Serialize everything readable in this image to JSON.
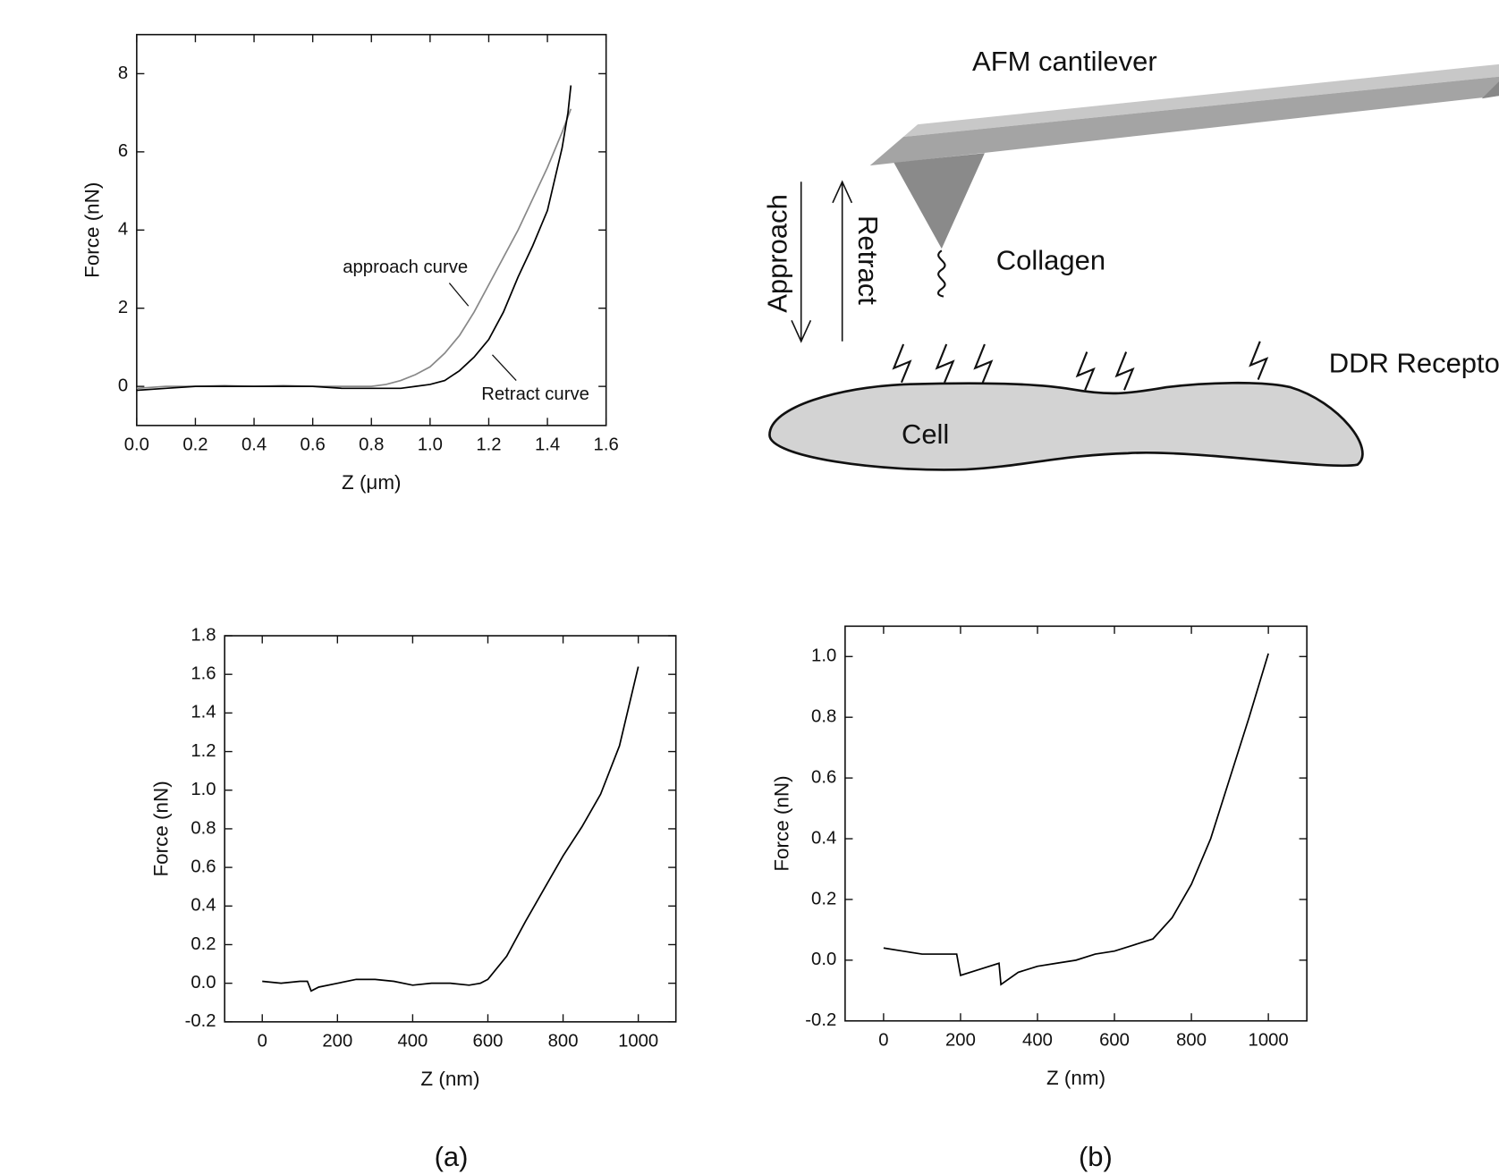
{
  "chart_data": [
    {
      "type": "line",
      "x_label": "Z (μm)",
      "y_label": "Force (nN)",
      "xlim": [
        0,
        1.6
      ],
      "ylim": [
        -1,
        9
      ],
      "xticks": [
        {
          "value": 0,
          "label": "0.0"
        },
        0.2,
        0.4,
        0.6,
        0.8,
        {
          "value": 1,
          "label": "1.0"
        },
        1.2,
        1.4,
        1.6
      ],
      "yticks": [
        0,
        2,
        4,
        6,
        8
      ],
      "x": [
        0,
        0.1,
        0.2,
        0.3,
        0.4,
        0.5,
        0.6,
        0.7,
        0.8,
        0.85,
        0.9,
        0.95,
        1.0,
        1.05,
        1.1,
        1.15,
        1.2,
        1.25,
        1.3,
        1.35,
        1.4,
        1.45,
        1.47,
        1.48
      ],
      "series": [
        {
          "color": "#888888",
          "values": [
            -0.05,
            0.0,
            0.0,
            0.02,
            0.0,
            0.02,
            0.0,
            0.0,
            0.0,
            0.05,
            0.15,
            0.3,
            0.5,
            0.85,
            1.3,
            1.9,
            2.6,
            3.3,
            4.0,
            4.8,
            5.6,
            6.5,
            6.9,
            7.1
          ]
        },
        {
          "color": "#000000",
          "values": [
            -0.1,
            -0.05,
            0.0,
            0.0,
            0.0,
            0.0,
            0.0,
            -0.05,
            -0.05,
            -0.05,
            -0.05,
            0.0,
            0.05,
            0.15,
            0.4,
            0.75,
            1.2,
            1.9,
            2.8,
            3.6,
            4.5,
            6.1,
            7.0,
            7.7
          ]
        }
      ],
      "annotations": [
        "approach curve",
        "Retract curve"
      ]
    },
    {
      "type": "line",
      "x_label": "Z (nm)",
      "y_label": "Force (nN)",
      "xlim": [
        -100,
        1100
      ],
      "ylim": [
        -0.2,
        1.8
      ],
      "xticks": [
        0,
        200,
        400,
        600,
        800,
        1000
      ],
      "yticks": [
        -0.2,
        {
          "value": 0,
          "label": "0.0"
        },
        0.2,
        0.4,
        0.6,
        0.8,
        {
          "value": 1,
          "label": "1.0"
        },
        1.2,
        1.4,
        1.6,
        1.8
      ],
      "x": [
        0,
        50,
        100,
        120,
        130,
        150,
        200,
        250,
        300,
        350,
        400,
        450,
        500,
        550,
        580,
        600,
        650,
        700,
        750,
        800,
        850,
        900,
        950,
        1000
      ],
      "series": [
        {
          "color": "#000000",
          "values": [
            0.01,
            0.0,
            0.01,
            0.01,
            -0.04,
            -0.02,
            0.0,
            0.02,
            0.02,
            0.01,
            -0.01,
            0.0,
            0.0,
            -0.01,
            0.0,
            0.02,
            0.14,
            0.32,
            0.49,
            0.66,
            0.81,
            0.98,
            1.23,
            1.64
          ]
        }
      ]
    },
    {
      "type": "line",
      "x_label": "Z (nm)",
      "y_label": "Force (nN)",
      "xlim": [
        -100,
        1100
      ],
      "ylim": [
        -0.2,
        1.1
      ],
      "xticks": [
        0,
        200,
        400,
        600,
        800,
        1000
      ],
      "yticks": [
        -0.2,
        {
          "value": 0,
          "label": "0.0"
        },
        0.2,
        0.4,
        0.6,
        0.8,
        {
          "value": 1,
          "label": "1.0"
        }
      ],
      "x": [
        0,
        50,
        100,
        150,
        190,
        200,
        250,
        300,
        305,
        350,
        400,
        450,
        500,
        550,
        600,
        650,
        700,
        750,
        800,
        850,
        900,
        950,
        1000
      ],
      "series": [
        {
          "color": "#000000",
          "values": [
            0.04,
            0.03,
            0.02,
            0.02,
            0.02,
            -0.05,
            -0.03,
            -0.01,
            -0.08,
            -0.04,
            -0.02,
            -0.01,
            0.0,
            0.02,
            0.03,
            0.05,
            0.07,
            0.14,
            0.25,
            0.4,
            0.6,
            0.8,
            1.01
          ]
        }
      ]
    }
  ],
  "diagram": {
    "cantilever": "AFM cantilever",
    "collagen": "Collagen",
    "approach": "Approach",
    "retract": "Retract",
    "receptor": "DDR Receptor",
    "cell": "Cell"
  },
  "panel_labels": [
    "(a)",
    "(b)"
  ]
}
